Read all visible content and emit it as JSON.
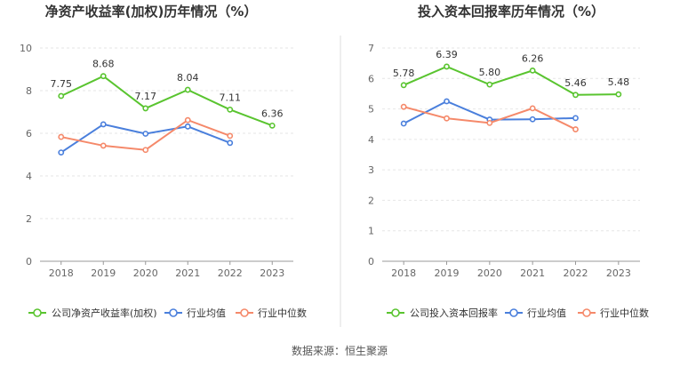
{
  "source": "数据来源：恒生聚源",
  "chart_data": [
    {
      "type": "line",
      "title": "净资产收益率(加权)历年情况（%）",
      "categories": [
        "2018",
        "2019",
        "2020",
        "2021",
        "2022",
        "2023"
      ],
      "ylim": [
        0,
        10
      ],
      "yticks": [
        0,
        2,
        4,
        6,
        8,
        10
      ],
      "grid": true,
      "legend_position": "bottom",
      "series": [
        {
          "name": "公司净资产收益率(加权)",
          "color": "#59c42f",
          "values": [
            7.75,
            8.68,
            7.17,
            8.04,
            7.11,
            6.36
          ],
          "labels": [
            "7.75",
            "8.68",
            "7.17",
            "8.04",
            "7.11",
            "6.36"
          ]
        },
        {
          "name": "行业均值",
          "color": "#4a7fdc",
          "values": [
            5.1,
            6.42,
            5.98,
            6.32,
            5.55,
            null
          ]
        },
        {
          "name": "行业中位数",
          "color": "#f5896a",
          "values": [
            5.83,
            5.42,
            5.22,
            6.62,
            5.88,
            null
          ]
        }
      ]
    },
    {
      "type": "line",
      "title": "投入资本回报率历年情况（%）",
      "categories": [
        "2018",
        "2019",
        "2020",
        "2021",
        "2022",
        "2023"
      ],
      "ylim": [
        0,
        7
      ],
      "yticks": [
        0,
        1,
        2,
        3,
        4,
        5,
        6,
        7
      ],
      "grid": true,
      "legend_position": "bottom",
      "series": [
        {
          "name": "公司投入资本回报率",
          "color": "#59c42f",
          "values": [
            5.78,
            6.39,
            5.8,
            6.26,
            5.46,
            5.48
          ],
          "labels": [
            "5.78",
            "6.39",
            "5.80",
            "6.26",
            "5.46",
            "5.48"
          ]
        },
        {
          "name": "行业均值",
          "color": "#4a7fdc",
          "values": [
            4.52,
            5.25,
            4.65,
            4.66,
            4.7,
            null
          ]
        },
        {
          "name": "行业中位数",
          "color": "#f5896a",
          "values": [
            5.07,
            4.69,
            4.54,
            5.02,
            4.33,
            null
          ]
        }
      ]
    }
  ]
}
